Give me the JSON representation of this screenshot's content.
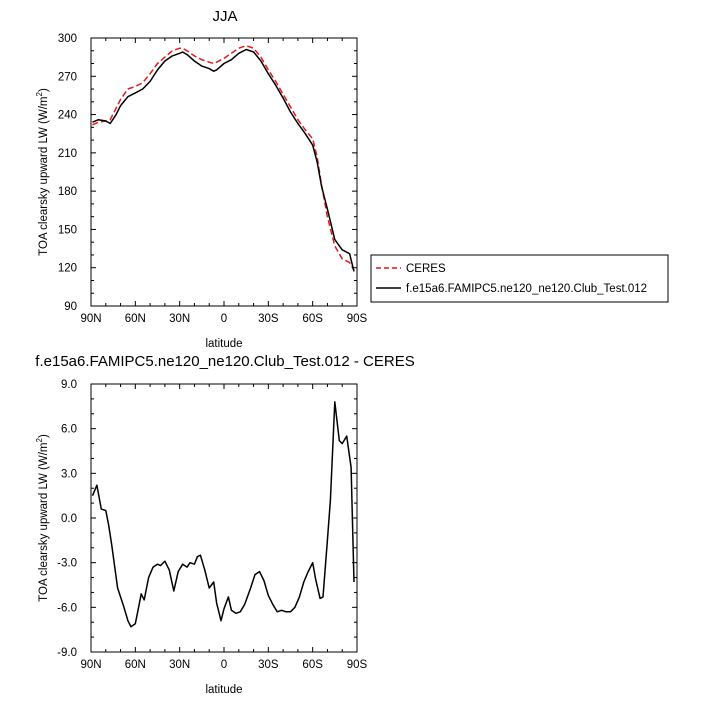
{
  "chart_data": [
    {
      "type": "line",
      "title": "JJA",
      "xlabel": "latitude",
      "ylabel_main": "TOA clearsky upward LW (W/m",
      "ylabel_sup": "2",
      "ylabel_tail": ")",
      "xlim": [
        90,
        -90
      ],
      "ylim": [
        90,
        300
      ],
      "x_ticks": [
        90,
        60,
        30,
        0,
        -30,
        -60,
        -90
      ],
      "x_tick_labels": [
        "90N",
        "60N",
        "30N",
        "0",
        "30S",
        "60S",
        "90S"
      ],
      "y_ticks": [
        90,
        120,
        150,
        180,
        210,
        240,
        270,
        300
      ],
      "y_tick_labels": [
        "90",
        "120",
        "150",
        "180",
        "210",
        "240",
        "270",
        "300"
      ],
      "legend_position": "right",
      "series": [
        {
          "name": "CERES",
          "color": "#e41a1c",
          "dash": "dashed",
          "x": [
            89,
            85,
            80,
            77,
            73,
            70,
            65,
            60,
            55,
            50,
            45,
            40,
            35,
            30,
            28,
            25,
            20,
            15,
            10,
            7,
            5,
            0,
            -5,
            -10,
            -15,
            -20,
            -25,
            -30,
            -35,
            -40,
            -45,
            -50,
            -55,
            -60,
            -63,
            -66,
            -70,
            -75,
            -80,
            -85,
            -88
          ],
          "y": [
            232,
            234,
            235,
            236,
            245,
            252,
            260,
            262,
            265,
            272,
            280,
            285,
            290,
            292,
            292,
            290,
            286,
            283,
            281,
            280,
            281,
            284,
            288,
            292,
            294,
            292,
            285,
            275,
            266,
            256,
            246,
            236,
            228,
            221,
            207,
            185,
            160,
            137,
            127,
            124,
            118
          ]
        },
        {
          "name": "f.e15a6.FAMIPC5.ne120_ne120.Club_Test.012",
          "color": "#000000",
          "dash": "solid",
          "x": [
            89,
            85,
            80,
            77,
            73,
            70,
            65,
            60,
            55,
            50,
            45,
            40,
            35,
            30,
            28,
            25,
            20,
            15,
            10,
            7,
            5,
            0,
            -5,
            -10,
            -15,
            -20,
            -25,
            -30,
            -35,
            -40,
            -45,
            -50,
            -55,
            -60,
            -63,
            -66,
            -70,
            -75,
            -80,
            -85,
            -88
          ],
          "y": [
            234,
            236,
            235,
            233,
            240,
            247,
            254,
            257,
            260,
            266,
            275,
            282,
            286,
            288,
            289,
            287,
            282,
            278,
            276,
            274,
            275,
            280,
            283,
            288,
            291,
            289,
            282,
            272,
            263,
            253,
            242,
            233,
            225,
            216,
            203,
            184,
            166,
            142,
            134,
            131,
            117
          ]
        }
      ]
    },
    {
      "type": "line",
      "title": "f.e15a6.FAMIPC5.ne120_ne120.Club_Test.012 - CERES",
      "xlabel": "latitude",
      "ylabel_main": "TOA clearsky upward LW (W/m",
      "ylabel_sup": "2",
      "ylabel_tail": ")",
      "xlim": [
        90,
        -90
      ],
      "ylim": [
        -9,
        9
      ],
      "x_ticks": [
        90,
        60,
        30,
        0,
        -30,
        -60,
        -90
      ],
      "x_tick_labels": [
        "90N",
        "60N",
        "30N",
        "0",
        "30S",
        "60S",
        "90S"
      ],
      "y_ticks": [
        -9,
        -6,
        -3,
        0,
        3,
        6,
        9
      ],
      "y_tick_labels": [
        "-9.0",
        "-6.0",
        "-3.0",
        "0.0",
        "3.0",
        "6.0",
        "9.0"
      ],
      "series": [
        {
          "color": "#000000",
          "x": [
            89,
            86,
            83,
            80,
            78,
            76,
            72,
            68,
            65,
            63,
            60,
            58,
            56,
            54,
            51,
            48,
            45,
            43,
            40,
            37,
            34,
            31,
            28,
            25,
            23,
            20,
            18,
            16,
            13,
            10,
            7,
            5,
            2,
            0,
            -3,
            -5,
            -8,
            -11,
            -14,
            -18,
            -21,
            -24,
            -27,
            -30,
            -33,
            -36,
            -39,
            -42,
            -45,
            -48,
            -51,
            -54,
            -57,
            -60,
            -62,
            -65,
            -67,
            -70,
            -72,
            -75,
            -78,
            -80,
            -83,
            -86,
            -88
          ],
          "y": [
            1.5,
            2.2,
            0.6,
            0.5,
            -0.5,
            -1.8,
            -4.7,
            -5.9,
            -6.9,
            -7.3,
            -7.1,
            -6.1,
            -5.1,
            -5.5,
            -4.0,
            -3.3,
            -3.1,
            -3.2,
            -2.9,
            -3.5,
            -4.9,
            -3.6,
            -3.1,
            -3.3,
            -3.0,
            -3.1,
            -2.6,
            -2.5,
            -3.5,
            -4.7,
            -4.3,
            -5.7,
            -6.9,
            -6.1,
            -5.3,
            -6.2,
            -6.4,
            -6.3,
            -5.8,
            -4.7,
            -3.8,
            -3.6,
            -4.2,
            -5.2,
            -5.8,
            -6.3,
            -6.2,
            -6.3,
            -6.3,
            -6.0,
            -5.3,
            -4.3,
            -3.6,
            -3.0,
            -4.1,
            -5.4,
            -5.3,
            -1.5,
            1.2,
            7.8,
            5.2,
            5.0,
            5.5,
            3.4,
            -4.3
          ]
        }
      ]
    }
  ]
}
